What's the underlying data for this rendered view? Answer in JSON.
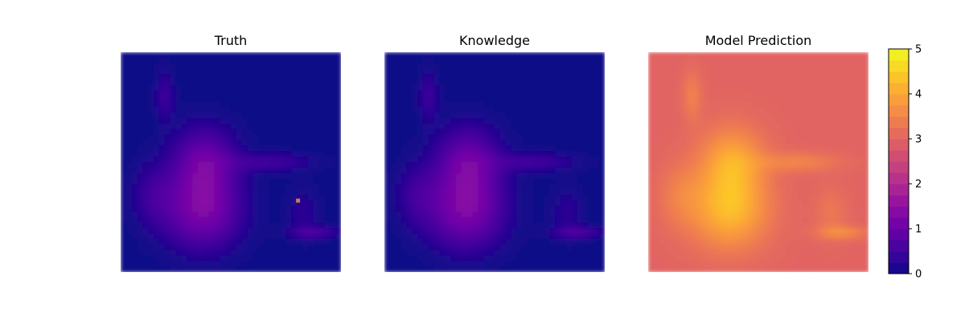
{
  "chart_data": [
    {
      "type": "heatmap",
      "title": "Truth",
      "base_value": 0.0,
      "blobs": [
        {
          "cx": 0.38,
          "cy": 0.5,
          "sx": 0.1,
          "sy": 0.11,
          "a": 1.0
        },
        {
          "cx": 0.37,
          "cy": 0.72,
          "sx": 0.12,
          "sy": 0.12,
          "a": 1.2
        },
        {
          "cx": 0.68,
          "cy": 0.5,
          "sx": 0.13,
          "sy": 0.03,
          "a": 0.5
        },
        {
          "cx": 0.88,
          "cy": 0.82,
          "sx": 0.08,
          "sy": 0.02,
          "a": 0.6
        },
        {
          "cx": 0.2,
          "cy": 0.2,
          "sx": 0.03,
          "sy": 0.08,
          "a": 0.45
        },
        {
          "cx": 0.15,
          "cy": 0.65,
          "sx": 0.07,
          "sy": 0.1,
          "a": 0.4
        },
        {
          "cx": 0.83,
          "cy": 0.73,
          "sx": 0.05,
          "sy": 0.08,
          "a": 0.3
        }
      ],
      "marker": {
        "value": 3.5,
        "x": 0.805,
        "y": 0.675
      }
    },
    {
      "type": "heatmap",
      "title": "Knowledge",
      "base_value": 0.0,
      "blobs": [
        {
          "cx": 0.38,
          "cy": 0.5,
          "sx": 0.1,
          "sy": 0.11,
          "a": 1.0
        },
        {
          "cx": 0.37,
          "cy": 0.72,
          "sx": 0.12,
          "sy": 0.12,
          "a": 1.2
        },
        {
          "cx": 0.68,
          "cy": 0.5,
          "sx": 0.13,
          "sy": 0.03,
          "a": 0.5
        },
        {
          "cx": 0.88,
          "cy": 0.82,
          "sx": 0.08,
          "sy": 0.02,
          "a": 0.6
        },
        {
          "cx": 0.2,
          "cy": 0.2,
          "sx": 0.03,
          "sy": 0.08,
          "a": 0.45
        },
        {
          "cx": 0.15,
          "cy": 0.65,
          "sx": 0.07,
          "sy": 0.1,
          "a": 0.4
        },
        {
          "cx": 0.83,
          "cy": 0.73,
          "sx": 0.05,
          "sy": 0.08,
          "a": 0.3
        }
      ]
    },
    {
      "type": "heatmap",
      "title": "Model Prediction",
      "base_value": 3.0,
      "blobs": [
        {
          "cx": 0.38,
          "cy": 0.5,
          "sx": 0.1,
          "sy": 0.11,
          "a": 1.0
        },
        {
          "cx": 0.37,
          "cy": 0.72,
          "sx": 0.12,
          "sy": 0.12,
          "a": 1.2
        },
        {
          "cx": 0.68,
          "cy": 0.5,
          "sx": 0.13,
          "sy": 0.03,
          "a": 0.5
        },
        {
          "cx": 0.88,
          "cy": 0.82,
          "sx": 0.08,
          "sy": 0.02,
          "a": 0.6
        },
        {
          "cx": 0.2,
          "cy": 0.2,
          "sx": 0.03,
          "sy": 0.08,
          "a": 0.45
        },
        {
          "cx": 0.15,
          "cy": 0.65,
          "sx": 0.07,
          "sy": 0.1,
          "a": 0.4
        },
        {
          "cx": 0.83,
          "cy": 0.73,
          "sx": 0.05,
          "sy": 0.08,
          "a": 0.3
        }
      ]
    }
  ],
  "colorbar": {
    "min": 0,
    "max": 5,
    "ticks": [
      "0",
      "1",
      "2",
      "3",
      "4",
      "5"
    ],
    "levels": 20,
    "colormap": "plasma"
  }
}
